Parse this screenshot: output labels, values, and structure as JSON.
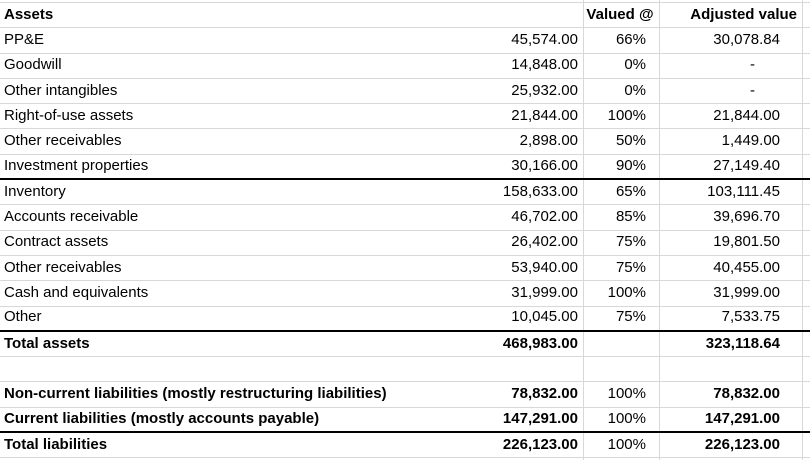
{
  "sheet": {
    "headers": {
      "assets": "Assets",
      "valued_at": "Valued @",
      "adjusted_value": "Adjusted value"
    },
    "rows": [
      {
        "label": "PP&E",
        "value": "45,574.00",
        "pct": "66%",
        "adj": "30,078.84",
        "bold": false,
        "thick_bottom_border": false,
        "blank": false
      },
      {
        "label": "Goodwill",
        "value": "14,848.00",
        "pct": "0%",
        "adj": "-",
        "bold": false,
        "thick_bottom_border": false,
        "blank": false
      },
      {
        "label": "Other intangibles",
        "value": "25,932.00",
        "pct": "0%",
        "adj": "-",
        "bold": false,
        "thick_bottom_border": false,
        "blank": false
      },
      {
        "label": "Right-of-use assets",
        "value": "21,844.00",
        "pct": "100%",
        "adj": "21,844.00",
        "bold": false,
        "thick_bottom_border": false,
        "blank": false
      },
      {
        "label": "Other receivables",
        "value": "2,898.00",
        "pct": "50%",
        "adj": "1,449.00",
        "bold": false,
        "thick_bottom_border": false,
        "blank": false
      },
      {
        "label": "Investment properties",
        "value": "30,166.00",
        "pct": "90%",
        "adj": "27,149.40",
        "bold": false,
        "thick_bottom_border": true,
        "blank": false
      },
      {
        "label": "Inventory",
        "value": "158,633.00",
        "pct": "65%",
        "adj": "103,111.45",
        "bold": false,
        "thick_bottom_border": false,
        "blank": false
      },
      {
        "label": "Accounts receivable",
        "value": "46,702.00",
        "pct": "85%",
        "adj": "39,696.70",
        "bold": false,
        "thick_bottom_border": false,
        "blank": false
      },
      {
        "label": "Contract assets",
        "value": "26,402.00",
        "pct": "75%",
        "adj": "19,801.50",
        "bold": false,
        "thick_bottom_border": false,
        "blank": false
      },
      {
        "label": "Other receivables",
        "value": "53,940.00",
        "pct": "75%",
        "adj": "40,455.00",
        "bold": false,
        "thick_bottom_border": false,
        "blank": false
      },
      {
        "label": "Cash and equivalents",
        "value": "31,999.00",
        "pct": "100%",
        "adj": "31,999.00",
        "bold": false,
        "thick_bottom_border": false,
        "blank": false
      },
      {
        "label": "Other",
        "value": "10,045.00",
        "pct": "75%",
        "adj": "7,533.75",
        "bold": false,
        "thick_bottom_border": true,
        "blank": false
      },
      {
        "label": "Total assets",
        "value": "468,983.00",
        "pct": "",
        "adj": "323,118.64",
        "bold": true,
        "thick_bottom_border": false,
        "blank": false
      },
      {
        "label": "",
        "value": "",
        "pct": "",
        "adj": "",
        "bold": false,
        "thick_bottom_border": false,
        "blank": true
      },
      {
        "label": "Non-current liabilities (mostly restructuring liabilities)",
        "value": "78,832.00",
        "pct": "100%",
        "adj": "78,832.00",
        "bold": true,
        "thick_bottom_border": false,
        "blank": false
      },
      {
        "label": "Current liabilities (mostly accounts payable)",
        "value": "147,291.00",
        "pct": "100%",
        "adj": "147,291.00",
        "bold": true,
        "thick_bottom_border": true,
        "blank": false
      },
      {
        "label": "Total liabilities",
        "value": "226,123.00",
        "pct": "100%",
        "adj": "226,123.00",
        "bold": true,
        "thick_bottom_border": false,
        "blank": false
      }
    ]
  },
  "colors": {
    "gridline": "#d8d8d8",
    "text": "#000000",
    "section_border": "#000000",
    "background": "#ffffff"
  }
}
